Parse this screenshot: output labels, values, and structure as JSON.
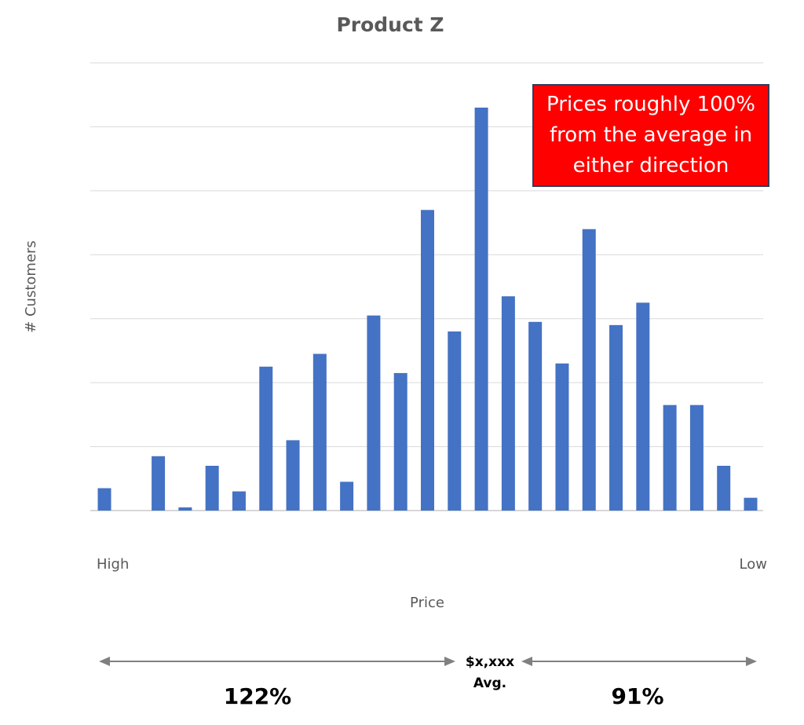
{
  "chart_data": {
    "type": "bar",
    "title": "Product Z",
    "ylabel": "# Customers",
    "xlabel": "Price",
    "x_start_label": "High",
    "x_end_label": "Low",
    "values": [
      7,
      0,
      17,
      1,
      14,
      6,
      45,
      22,
      49,
      9,
      61,
      43,
      94,
      56,
      126,
      67,
      59,
      46,
      88,
      58,
      65,
      33,
      33,
      14,
      4
    ],
    "ylim": [
      0,
      140
    ],
    "grid": true,
    "annotation": "Prices roughly 100% from the average in either direction"
  },
  "bottom": {
    "left_pct": "122%",
    "right_pct": "91%",
    "avg_value": "$x,xxx",
    "avg_label": "Avg."
  },
  "colors": {
    "bar": "#4472c4",
    "callout": "#ff0000"
  }
}
